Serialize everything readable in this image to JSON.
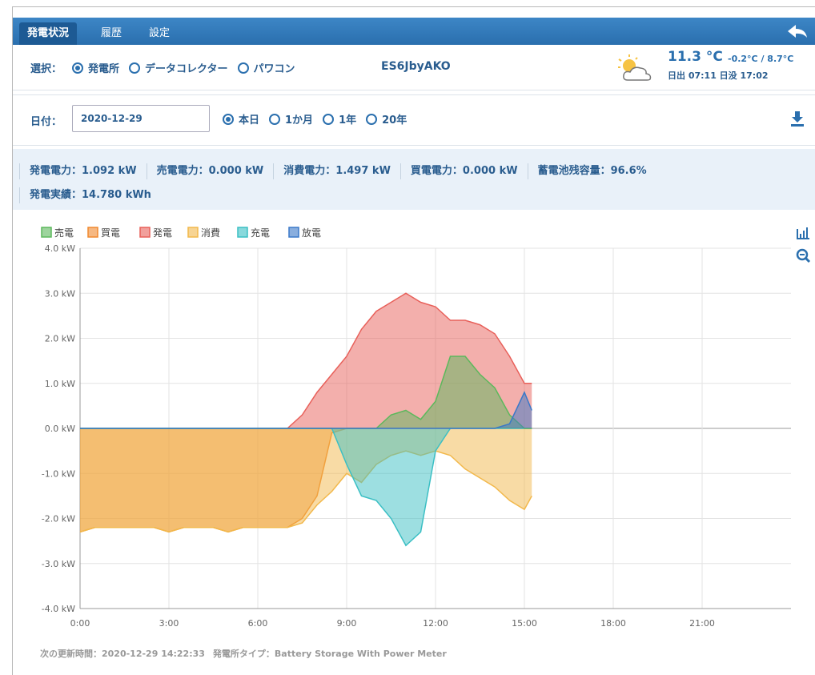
{
  "tabs": [
    "発電状況",
    "履歴",
    "設定"
  ],
  "selection": {
    "label": "選択：",
    "options": [
      {
        "text": "発電所",
        "checked": true
      },
      {
        "text": "データコレクター",
        "checked": false
      },
      {
        "text": "パワコン",
        "checked": false
      }
    ],
    "device": "ES6JbyAKO"
  },
  "weather": {
    "temperature": "11.3 °C",
    "range": "-0.2°C / 8.7°C",
    "sun": "日出 07:11 日没 17:02"
  },
  "date": {
    "label": "日付：",
    "value": "2020-12-29",
    "options": [
      {
        "text": "本日",
        "checked": true
      },
      {
        "text": "1か月",
        "checked": false
      },
      {
        "text": "1年",
        "checked": false
      },
      {
        "text": "20年",
        "checked": false
      }
    ]
  },
  "stats": [
    "発電電力：1.092 kW",
    "売電電力：0.000 kW",
    "消費電力：1.497 kW",
    "買電電力：0.000 kW",
    "蓄電池残容量：96.6%",
    "発電実績：14.780 kWh"
  ],
  "chart_data": {
    "type": "area",
    "x": [
      0,
      0.5,
      1,
      1.5,
      2,
      2.5,
      3,
      3.5,
      4,
      4.5,
      5,
      5.5,
      6,
      6.5,
      7,
      7.5,
      8,
      8.5,
      9,
      9.5,
      10,
      10.5,
      11,
      11.5,
      12,
      12.5,
      13,
      13.5,
      14,
      14.5,
      15,
      15.25
    ],
    "xlim": [
      0,
      24
    ],
    "xticks": [
      {
        "value": 0,
        "label": "0:00"
      },
      {
        "value": 3,
        "label": "3:00"
      },
      {
        "value": 6,
        "label": "6:00"
      },
      {
        "value": 9,
        "label": "9:00"
      },
      {
        "value": 12,
        "label": "12:00"
      },
      {
        "value": 15,
        "label": "15:00"
      },
      {
        "value": 18,
        "label": "18:00"
      },
      {
        "value": 21,
        "label": "21:00"
      }
    ],
    "ylim": [
      -4,
      4
    ],
    "yticks": [
      {
        "value": 4,
        "label": "4.0 kW"
      },
      {
        "value": 3,
        "label": "3.0 kW"
      },
      {
        "value": 2,
        "label": "2.0 kW"
      },
      {
        "value": 1,
        "label": "1.0 kW"
      },
      {
        "value": 0,
        "label": "0.0 kW"
      },
      {
        "value": -1,
        "label": "-1.0 kW"
      },
      {
        "value": -2,
        "label": "-2.0 kW"
      },
      {
        "value": -3,
        "label": "-3.0 kW"
      },
      {
        "value": -4,
        "label": "-4.0 kW"
      }
    ],
    "grid": true,
    "series": [
      {
        "name": "売電",
        "color": "#5cb85c",
        "values": [
          0,
          0,
          0,
          0,
          0,
          0,
          0,
          0,
          0,
          0,
          0,
          0,
          0,
          0,
          0,
          0,
          0,
          0,
          0,
          0,
          0,
          0.3,
          0.4,
          0.2,
          0.6,
          1.6,
          1.6,
          1.2,
          0.9,
          0.3,
          0,
          0
        ]
      },
      {
        "name": "買電",
        "color": "#f0892e",
        "values": [
          -2.3,
          -2.2,
          -2.2,
          -2.2,
          -2.2,
          -2.2,
          -2.3,
          -2.2,
          -2.2,
          -2.2,
          -2.3,
          -2.2,
          -2.2,
          -2.2,
          -2.2,
          -2.0,
          -1.5,
          -0.1,
          0,
          0,
          0,
          0,
          0,
          0,
          0,
          0,
          0,
          0,
          0,
          0,
          0,
          0
        ]
      },
      {
        "name": "発電",
        "color": "#e8605a",
        "values": [
          0,
          0,
          0,
          0,
          0,
          0,
          0,
          0,
          0,
          0,
          0,
          0,
          0,
          0,
          0,
          0.3,
          0.8,
          1.2,
          1.6,
          2.2,
          2.6,
          2.8,
          3.0,
          2.8,
          2.7,
          2.4,
          2.4,
          2.3,
          2.1,
          1.6,
          1.0,
          1.0
        ]
      },
      {
        "name": "消費",
        "color": "#f2b84b",
        "values": [
          -2.3,
          -2.2,
          -2.2,
          -2.2,
          -2.2,
          -2.2,
          -2.3,
          -2.2,
          -2.2,
          -2.2,
          -2.3,
          -2.2,
          -2.2,
          -2.2,
          -2.2,
          -2.1,
          -1.7,
          -1.4,
          -1.0,
          -1.2,
          -0.8,
          -0.6,
          -0.5,
          -0.6,
          -0.5,
          -0.6,
          -0.9,
          -1.1,
          -1.3,
          -1.6,
          -1.8,
          -1.5
        ]
      },
      {
        "name": "充電",
        "color": "#3bbfc4",
        "values": [
          0,
          0,
          0,
          0,
          0,
          0,
          0,
          0,
          0,
          0,
          0,
          0,
          0,
          0,
          0,
          0,
          0,
          0,
          -0.8,
          -1.5,
          -1.6,
          -2.0,
          -2.6,
          -2.3,
          -0.5,
          0,
          0,
          0,
          0,
          0,
          0,
          0
        ]
      },
      {
        "name": "放電",
        "color": "#3a78c8",
        "values": [
          0,
          0,
          0,
          0,
          0,
          0,
          0,
          0,
          0,
          0,
          0,
          0,
          0,
          0,
          0,
          0,
          0,
          0,
          0,
          0,
          0,
          0,
          0,
          0,
          0,
          0,
          0,
          0,
          0,
          0.1,
          0.8,
          0.4
        ]
      }
    ]
  },
  "footer": {
    "update": "次の更新時間：2020-12-29 14:22:33",
    "plant_type": "発電所タイプ：Battery Storage With Power Meter"
  }
}
